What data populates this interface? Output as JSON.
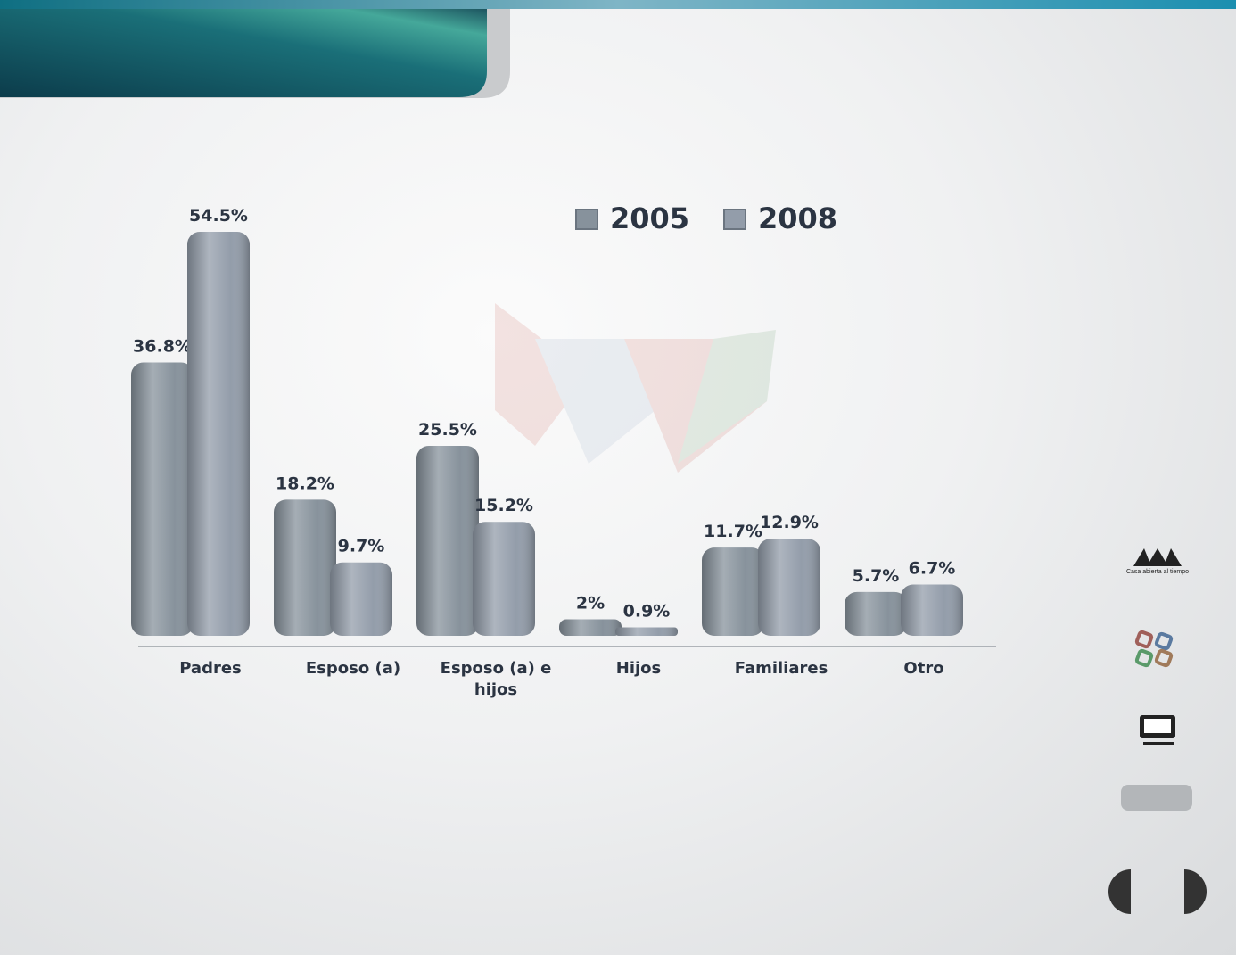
{
  "chart_data": {
    "type": "bar",
    "categories": [
      "Padres",
      "Esposo (a)",
      "Esposo (a) e hijos",
      "Hijos",
      "Familiares",
      "Otro"
    ],
    "series": [
      {
        "name": "2005",
        "color": "#87929c",
        "values": [
          36.8,
          18.2,
          25.5,
          2,
          11.7,
          5.7
        ],
        "value_labels": [
          "36.8%",
          "18.2%",
          "25.5%",
          "2%",
          "11.7%",
          "5.7%"
        ]
      },
      {
        "name": "2008",
        "color": "#939daa",
        "values": [
          54.5,
          9.7,
          15.2,
          0.9,
          12.9,
          6.7
        ],
        "value_labels": [
          "54.5%",
          "9.7%",
          "15.2%",
          "0.9%",
          "12.9%",
          "6.7%"
        ]
      }
    ],
    "legend": "top-right"
  },
  "sidebar": {
    "logo_caption": "Casa abierta al tiempo"
  }
}
